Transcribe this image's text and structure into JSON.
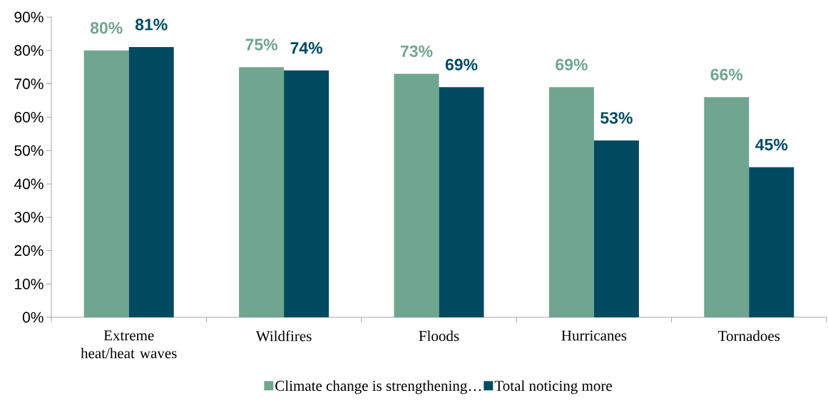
{
  "chart_data": {
    "type": "bar",
    "categories": [
      "Extreme heat/heat waves",
      "Wildfires",
      "Floods",
      "Hurricanes",
      "Tornadoes"
    ],
    "series": [
      {
        "name": "Climate change is strengthening…",
        "color": "#70a58f",
        "values": [
          80,
          75,
          73,
          69,
          66
        ],
        "value_labels": [
          "80%",
          "75%",
          "73%",
          "69%",
          "66%"
        ]
      },
      {
        "name": "Total noticing more",
        "color": "#004a61",
        "values": [
          81,
          74,
          69,
          53,
          45
        ],
        "value_labels": [
          "81%",
          "74%",
          "69%",
          "53%",
          "45%"
        ]
      }
    ],
    "ylim": [
      0,
      90
    ],
    "yticks": [
      {
        "value": 0,
        "label": "0%"
      },
      {
        "value": 10,
        "label": "10%"
      },
      {
        "value": 20,
        "label": "20%"
      },
      {
        "value": 30,
        "label": "30%"
      },
      {
        "value": 40,
        "label": "40%"
      },
      {
        "value": 50,
        "label": "50%"
      },
      {
        "value": 60,
        "label": "60%"
      },
      {
        "value": 70,
        "label": "70%"
      },
      {
        "value": 80,
        "label": "80%"
      },
      {
        "value": 90,
        "label": "90%"
      }
    ],
    "grid": false,
    "legend": "bottom"
  }
}
